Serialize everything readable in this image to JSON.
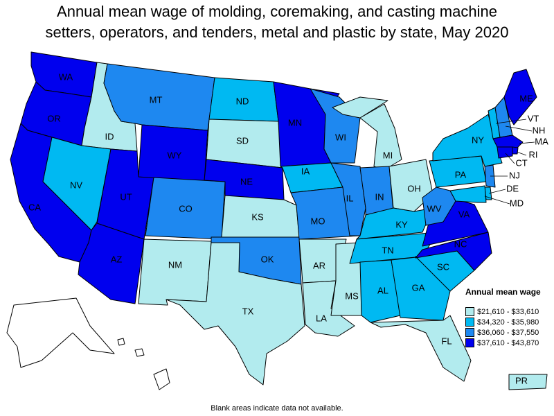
{
  "title_line1": "Annual mean wage of molding, coremaking, and casting machine",
  "title_line2": "setters, operators, and tenders, metal and plastic by state, May 2020",
  "footnote": "Blank areas indicate data not available.",
  "legend": {
    "title": "Annual mean wage",
    "items": [
      {
        "label": "$21,610 - $33,610",
        "color": "#b2ebee"
      },
      {
        "label": "$34,320 - $35,980",
        "color": "#00b9f2"
      },
      {
        "label": "$36,060 - $37,550",
        "color": "#1e88f0"
      },
      {
        "label": "$37,610 - $43,870",
        "color": "#0000ee"
      }
    ]
  },
  "states": {
    "WA": 3,
    "OR": 3,
    "CA": 3,
    "ID": 0,
    "NV": 1,
    "UT": 3,
    "AZ": 3,
    "MT": 2,
    "WY": 3,
    "CO": 2,
    "NM": 0,
    "ND": 1,
    "SD": 0,
    "NE": 3,
    "KS": 0,
    "OK": 2,
    "TX": 0,
    "MN": 3,
    "IA": 1,
    "MO": 2,
    "AR": 0,
    "LA": 0,
    "WI": 2,
    "IL": 2,
    "MS": 0,
    "MI": 0,
    "IN": 2,
    "OH": 0,
    "KY": 1,
    "TN": 1,
    "AL": 1,
    "GA": 1,
    "FL": 0,
    "SC": 1,
    "NC": 3,
    "VA": 3,
    "WV": 2,
    "PA": 1,
    "NY": 1,
    "VT": 1,
    "NH": 2,
    "ME": 3,
    "MA": 3,
    "RI": 3,
    "CT": 3,
    "NJ": 2,
    "DE": 1,
    "MD": 1,
    "PR": 0,
    "AK": -1,
    "HI": -1
  },
  "labels": [
    "WA",
    "OR",
    "CA",
    "ID",
    "NV",
    "UT",
    "AZ",
    "MT",
    "WY",
    "CO",
    "NM",
    "ND",
    "SD",
    "NE",
    "KS",
    "OK",
    "TX",
    "MN",
    "IA",
    "MO",
    "AR",
    "LA",
    "WI",
    "IL",
    "MS",
    "MI",
    "IN",
    "OH",
    "KY",
    "TN",
    "AL",
    "GA",
    "FL",
    "SC",
    "NC",
    "VA",
    "WV",
    "PA",
    "NY",
    "ME",
    "PR",
    "VT",
    "NH",
    "MA",
    "RI",
    "CT",
    "NJ",
    "DE",
    "MD"
  ]
}
